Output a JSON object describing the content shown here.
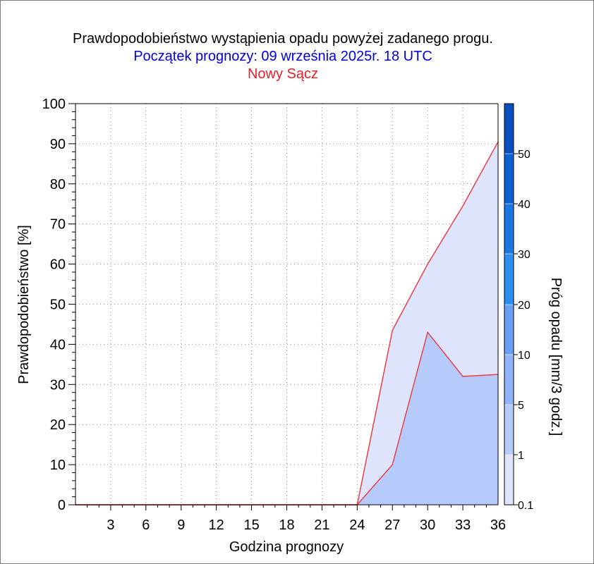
{
  "chart_data": {
    "type": "area",
    "title": "Prawdopodobieństwo wystąpienia opadu powyżej zadanego progu.",
    "subtitle": "Początek prognozy: 09 września 2025r. 18 UTC",
    "location": "Nowy Sącz",
    "xlabel": "Godzina prognozy",
    "ylabel": "Prawdopodobieństwo [%]",
    "colorbar_label": "Próg opadu [mm/3 godz.]",
    "xlim": [
      0,
      36
    ],
    "ylim": [
      0,
      100
    ],
    "x_ticks": [
      3,
      6,
      9,
      12,
      15,
      18,
      21,
      24,
      27,
      30,
      33,
      36
    ],
    "y_ticks": [
      0,
      10,
      20,
      30,
      40,
      50,
      60,
      70,
      80,
      90,
      100
    ],
    "grid": "dotted",
    "x": [
      0,
      3,
      6,
      9,
      12,
      15,
      18,
      21,
      24,
      27,
      30,
      33,
      36
    ],
    "series": [
      {
        "threshold": 0.1,
        "color": "#dde4fc",
        "values": [
          0,
          0,
          0,
          0,
          0,
          0,
          0,
          0,
          0,
          43.5,
          60,
          74.5,
          90.5
        ]
      },
      {
        "threshold": 1,
        "color": "#b7cbfb",
        "values": [
          0,
          0,
          0,
          0,
          0,
          0,
          0,
          0,
          0,
          10,
          43,
          32,
          32.5
        ]
      }
    ],
    "line_color": "#e8404a",
    "colorbar": {
      "labels": [
        "0.1",
        "1",
        "5",
        "10",
        "20",
        "30",
        "40",
        "50"
      ],
      "colors": [
        "#dde4fc",
        "#b7cbfb",
        "#90b3fa",
        "#6a9ff6",
        "#2c8ff0",
        "#1978e2",
        "#0b61cf",
        "#0a4fc0"
      ]
    }
  },
  "colors": {
    "title": "#000000",
    "subtitle": "#0000e6",
    "location": "#e8202a"
  }
}
